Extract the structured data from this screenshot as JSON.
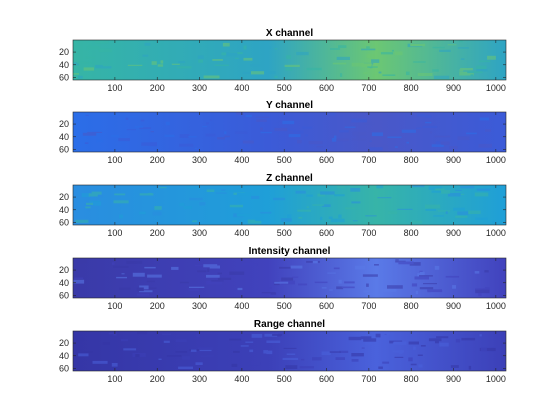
{
  "chart_data": [
    {
      "type": "heatmap",
      "title": "X channel",
      "xlabel": "",
      "ylabel": "",
      "xlim": [
        1,
        1024
      ],
      "ylim": [
        1,
        64
      ],
      "y_direction": "reversed",
      "xticks": [
        100,
        200,
        300,
        400,
        500,
        600,
        700,
        800,
        900,
        1000
      ],
      "yticks": [
        20,
        40,
        60
      ],
      "colormap": "parula",
      "dominant_colors": [
        "#36b5a5",
        "#2ea4c4",
        "#6cc773"
      ]
    },
    {
      "type": "heatmap",
      "title": "Y channel",
      "xlabel": "",
      "ylabel": "",
      "xlim": [
        1,
        1024
      ],
      "ylim": [
        1,
        64
      ],
      "y_direction": "reversed",
      "xticks": [
        100,
        200,
        300,
        400,
        500,
        600,
        700,
        800,
        900,
        1000
      ],
      "yticks": [
        20,
        40,
        60
      ],
      "colormap": "parula",
      "dominant_colors": [
        "#2b6ee8",
        "#3b5bd8",
        "#4a58c8"
      ]
    },
    {
      "type": "heatmap",
      "title": "Z channel",
      "xlabel": "",
      "ylabel": "",
      "xlim": [
        1,
        1024
      ],
      "ylim": [
        1,
        64
      ],
      "y_direction": "reversed",
      "xticks": [
        100,
        200,
        300,
        400,
        500,
        600,
        700,
        800,
        900,
        1000
      ],
      "yticks": [
        20,
        40,
        60
      ],
      "colormap": "parula",
      "dominant_colors": [
        "#2a8de0",
        "#1f9fd8",
        "#37b4a8"
      ]
    },
    {
      "type": "heatmap",
      "title": "Intensity channel",
      "xlabel": "",
      "ylabel": "",
      "xlim": [
        1,
        1024
      ],
      "ylim": [
        1,
        64
      ],
      "y_direction": "reversed",
      "xticks": [
        100,
        200,
        300,
        400,
        500,
        600,
        700,
        800,
        900,
        1000
      ],
      "yticks": [
        20,
        40,
        60
      ],
      "colormap": "parula",
      "dominant_colors": [
        "#3a3aa8",
        "#4142bd",
        "#5a7ae8"
      ]
    },
    {
      "type": "heatmap",
      "title": "Range channel",
      "xlabel": "",
      "ylabel": "",
      "xlim": [
        1,
        1024
      ],
      "ylim": [
        1,
        64
      ],
      "y_direction": "reversed",
      "xticks": [
        100,
        200,
        300,
        400,
        500,
        600,
        700,
        800,
        900,
        1000
      ],
      "yticks": [
        20,
        40,
        60
      ],
      "colormap": "parula",
      "dominant_colors": [
        "#3536a6",
        "#3c40b8",
        "#4a62dc"
      ]
    }
  ]
}
